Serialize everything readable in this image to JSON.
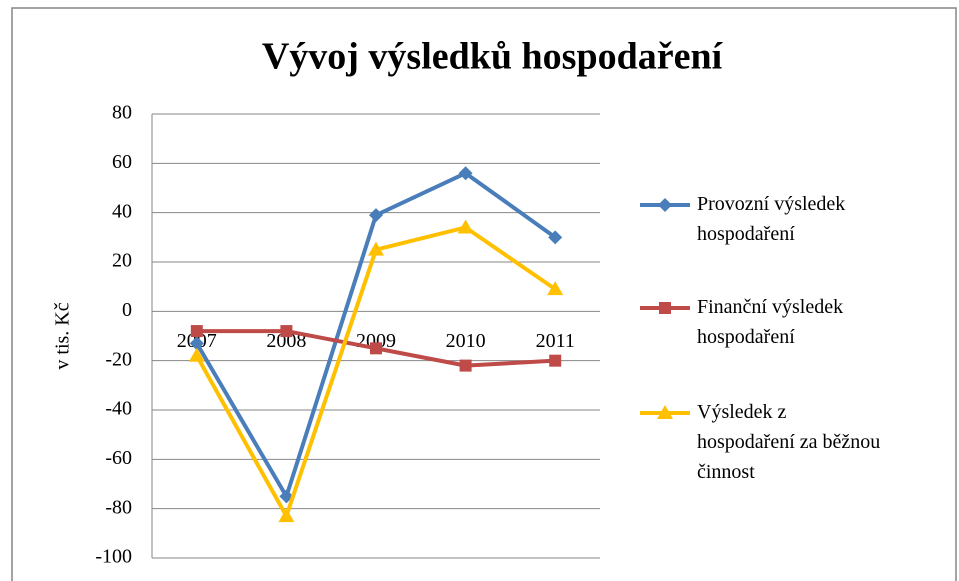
{
  "chart_data": {
    "type": "line",
    "title": "Vývoj výsledků hospodaření",
    "y_label": "v tis. Kč",
    "categories": [
      "2007",
      "2008",
      "2009",
      "2010",
      "2011"
    ],
    "series": [
      {
        "name": "Provozní výsledek hospodaření",
        "color": "#4a7ebb",
        "marker": "diamond",
        "values": [
          -13,
          -75,
          39,
          56,
          30
        ]
      },
      {
        "name": "Finanční výsledek hospodaření",
        "color": "#be4b48",
        "marker": "square",
        "values": [
          -8,
          -8,
          -15,
          -22,
          -20
        ]
      },
      {
        "name": "Výsledek z hospodaření za běžnou činnost",
        "color": "#ffc000",
        "marker": "triangle",
        "values": [
          -18,
          -83,
          25,
          34,
          9
        ]
      }
    ],
    "ylim": [
      -100,
      80
    ],
    "yticks": [
      -100,
      -80,
      -60,
      -40,
      -20,
      0,
      20,
      40,
      60,
      80
    ],
    "grid": true,
    "legend": "right"
  }
}
